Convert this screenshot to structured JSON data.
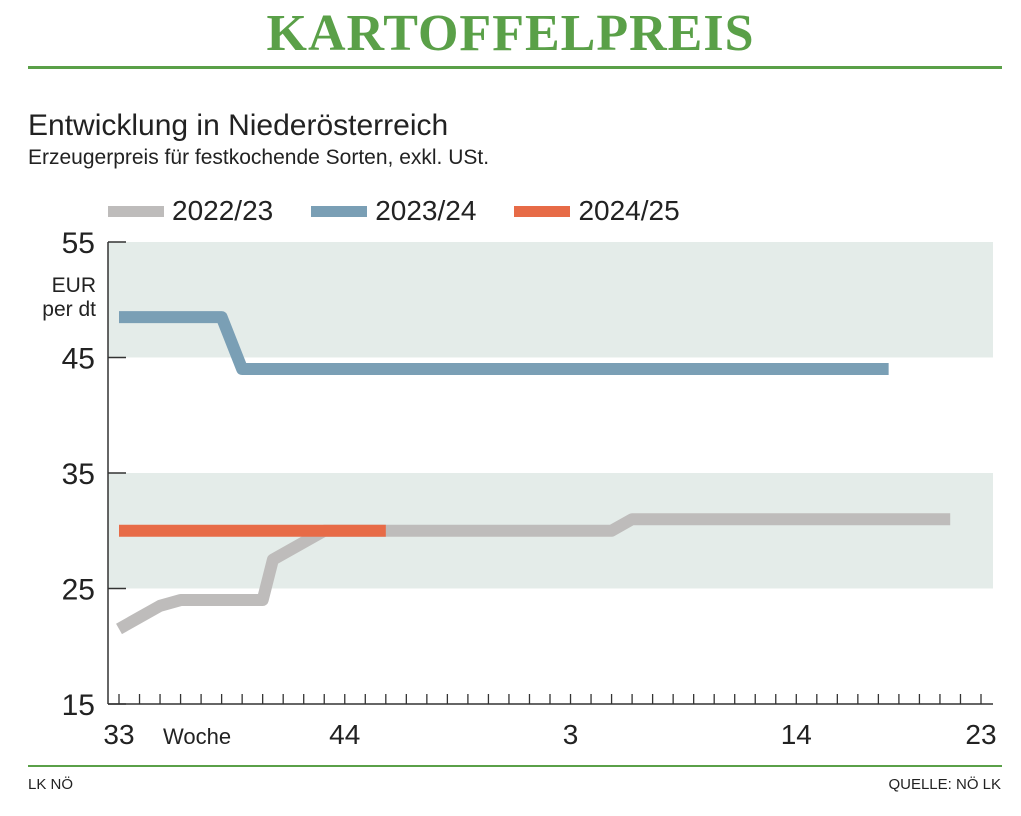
{
  "headline": "KARTOFFELPREIS",
  "footer": {
    "left": "LK NÖ",
    "right": "QUELLE: NÖ LK"
  },
  "chart_data": {
    "type": "line",
    "title": "Entwicklung in Niederösterreich",
    "subtitle": "Erzeugerpreis für festkochende Sorten, exkl. USt.",
    "ylabel": "EUR per dt",
    "xlabel": "Woche",
    "ylim": [
      15,
      55
    ],
    "yticks": [
      15,
      25,
      35,
      45,
      55
    ],
    "xticks": [
      {
        "x": 0,
        "label": "33"
      },
      {
        "x": 11,
        "label": "44"
      },
      {
        "x": 22,
        "label": "3"
      },
      {
        "x": 33,
        "label": "14"
      },
      {
        "x": 42,
        "label": "23"
      }
    ],
    "bands": [
      [
        25,
        35
      ],
      [
        45,
        55
      ]
    ],
    "legend_position": "top",
    "series": [
      {
        "name": "2022/23",
        "color": "#bebcbb",
        "x": [
          0,
          2,
          3,
          5,
          6,
          7,
          7.5,
          10,
          12,
          24,
          25,
          40.5
        ],
        "values": [
          21.5,
          23.5,
          24,
          24,
          24,
          24,
          27.5,
          30,
          30,
          30,
          31,
          31
        ]
      },
      {
        "name": "2023/24",
        "color": "#7a9fb5",
        "x": [
          0,
          5,
          6,
          37.5
        ],
        "values": [
          48.5,
          48.5,
          44,
          44
        ]
      },
      {
        "name": "2024/25",
        "color": "#e76b47",
        "x": [
          0,
          13
        ],
        "values": [
          30,
          30
        ]
      }
    ]
  }
}
